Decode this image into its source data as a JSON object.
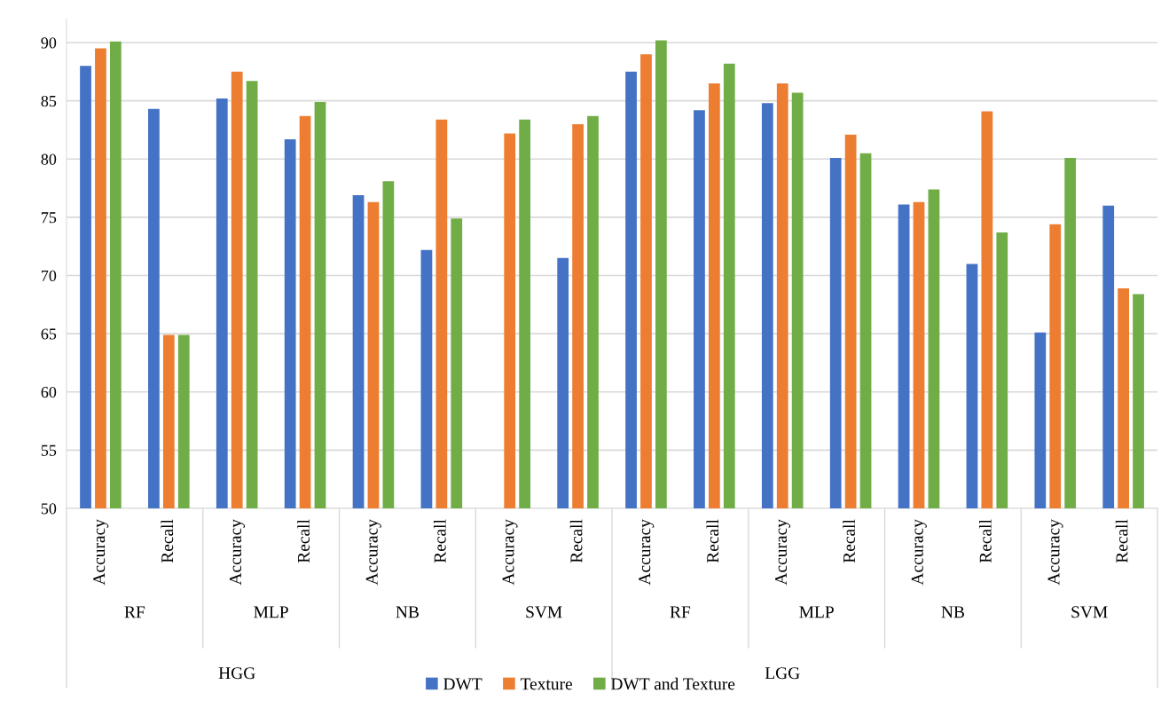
{
  "chart_data": {
    "type": "bar",
    "categories": [
      "Accuracy",
      "Recall",
      "Accuracy",
      "Recall",
      "Accuracy",
      "Recall",
      "Accuracy",
      "Recall",
      "Accuracy",
      "Recall",
      "Accuracy",
      "Recall",
      "Accuracy",
      "Recall",
      "Accuracy",
      "Recall"
    ],
    "series": [
      {
        "name": "DWT",
        "color": "#4472c4",
        "values": [
          88.0,
          84.3,
          85.2,
          81.7,
          76.9,
          72.2,
          null,
          71.5,
          87.5,
          84.2,
          84.8,
          80.1,
          76.1,
          71.0,
          65.1,
          76.0
        ]
      },
      {
        "name": "Texture",
        "color": "#ed7d31",
        "values": [
          89.5,
          64.9,
          87.5,
          83.7,
          76.3,
          83.4,
          82.2,
          83.0,
          89.0,
          86.5,
          86.5,
          82.1,
          76.3,
          84.1,
          74.4,
          68.9
        ]
      },
      {
        "name": "DWT and Texture",
        "color": "#70ad47",
        "values": [
          90.1,
          64.9,
          86.7,
          84.9,
          78.1,
          74.9,
          83.4,
          83.7,
          90.2,
          88.2,
          85.7,
          80.5,
          77.4,
          73.7,
          80.1,
          68.4
        ]
      }
    ],
    "annotations": [
      "RF",
      "MLP",
      "NB",
      "SVM",
      "RF",
      "MLP",
      "NB",
      "SVM",
      "HGG",
      "LGG"
    ],
    "ylim": [
      50,
      92
    ],
    "yticks": [
      50,
      55,
      60,
      65,
      70,
      75,
      80,
      85,
      90
    ],
    "grid": "y",
    "legend": "bottom"
  }
}
